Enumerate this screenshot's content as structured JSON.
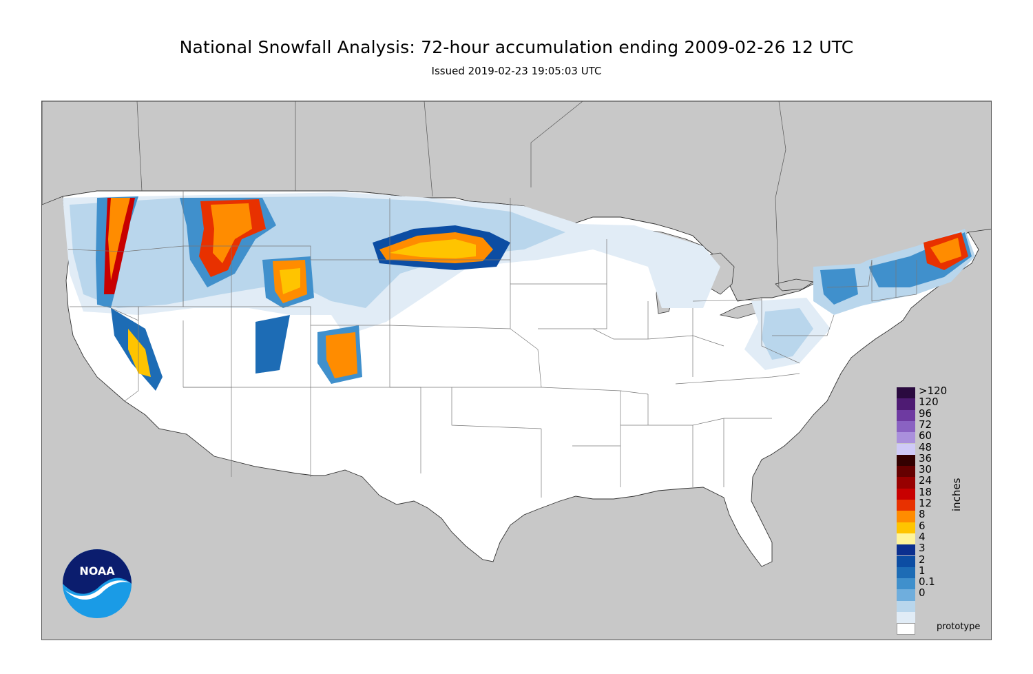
{
  "title": "National Snowfall Analysis: 72-hour accumulation ending 2009-02-26 12 UTC",
  "subtitle": "Issued 2019-02-23 19:05:03 UTC",
  "footer_note": "prototype",
  "logo_text": "NOAA",
  "colors": {
    "ocean_and_foreign_land": "#c8c8c8",
    "us_land": "#ffffff",
    "state_border": "#777777"
  },
  "legend": {
    "unit_label": "inches",
    "bins": [
      {
        "label": ">120",
        "color": "#2a0a3f"
      },
      {
        "label": "120",
        "color": "#4e1b73"
      },
      {
        "label": "96",
        "color": "#6e3aa1"
      },
      {
        "label": "72",
        "color": "#8a62c2"
      },
      {
        "label": "60",
        "color": "#aa90dc"
      },
      {
        "label": "48",
        "color": "#cfcaf7"
      },
      {
        "label": "36",
        "color": "#330000"
      },
      {
        "label": "30",
        "color": "#650000"
      },
      {
        "label": "24",
        "color": "#980000"
      },
      {
        "label": "18",
        "color": "#c80000"
      },
      {
        "label": "12",
        "color": "#e83100"
      },
      {
        "label": "8",
        "color": "#ff8c00"
      },
      {
        "label": "6",
        "color": "#ffc400"
      },
      {
        "label": "4",
        "color": "#fff49a"
      },
      {
        "label": "3",
        "color": "#0b2f8f"
      },
      {
        "label": "2",
        "color": "#0c4da3"
      },
      {
        "label": "1",
        "color": "#1d6cb5"
      },
      {
        "label": "0.1",
        "color": "#4090cc"
      },
      {
        "label": "0",
        "color": "#6faedd"
      },
      {
        "label": "",
        "color": "#b9d6ec"
      },
      {
        "label": "",
        "color": "#e1ecf6"
      },
      {
        "label": "",
        "color": "#ffffff"
      }
    ]
  }
}
